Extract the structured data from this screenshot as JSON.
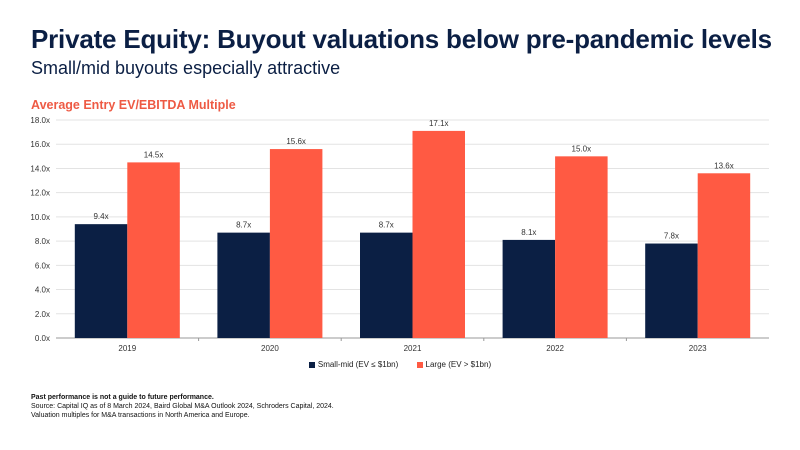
{
  "header": {
    "title": "Private Equity: Buyout valuations below pre-pandemic levels",
    "subtitle": "Small/mid buyouts especially attractive"
  },
  "chart_data": {
    "type": "bar",
    "title": "Average Entry EV/EBITDA Multiple",
    "xlabel": "",
    "ylabel": "",
    "categories": [
      "2019",
      "2020",
      "2021",
      "2022",
      "2023"
    ],
    "series": [
      {
        "name": "Small-mid (EV ≤ $1bn)",
        "color": "#0b1f44",
        "values": [
          9.4,
          8.7,
          8.7,
          8.1,
          7.8
        ],
        "labels": [
          "9.4x",
          "8.7x",
          "8.7x",
          "8.1x",
          "7.8x"
        ]
      },
      {
        "name": "Large (EV > $1bn)",
        "color": "#ff5a43",
        "values": [
          14.5,
          15.6,
          17.1,
          15.0,
          13.6
        ],
        "labels": [
          "14.5x",
          "15.6x",
          "17.1x",
          "15.0x",
          "13.6x"
        ]
      }
    ],
    "ylim": [
      0,
      18
    ],
    "yticks": [
      0,
      2,
      4,
      6,
      8,
      10,
      12,
      14,
      16,
      18
    ],
    "ytick_labels": [
      "0.0x",
      "2.0x",
      "4.0x",
      "6.0x",
      "8.0x",
      "10.0x",
      "12.0x",
      "14.0x",
      "16.0x",
      "18.0x"
    ],
    "grid": true,
    "legend_position": "bottom-center"
  },
  "footer": {
    "disclaimer": "Past performance is not a guide to future performance.",
    "source": "Source: Capital IQ as of 8 March 2024, Baird Global M&A Outlook 2024, Schroders Capital, 2024.",
    "note": "Valuation multiples for M&A transactions in North America and Europe."
  }
}
